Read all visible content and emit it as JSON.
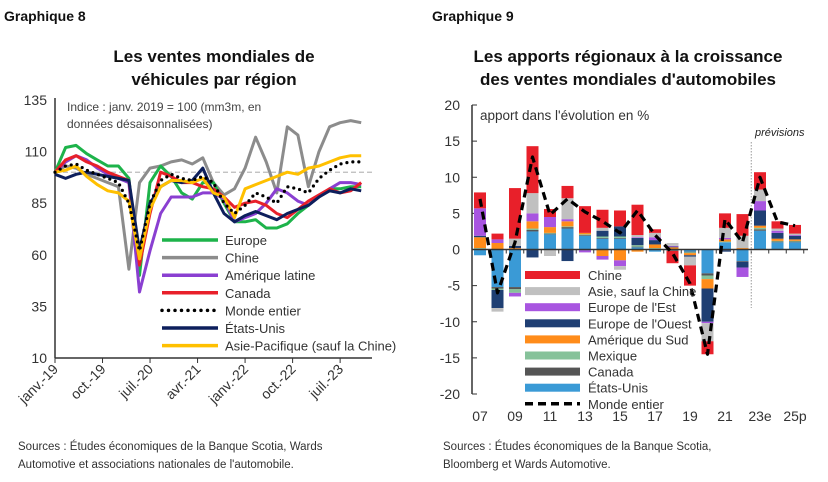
{
  "chart8": {
    "header": "Graphique 8",
    "title_lines": [
      "Les ventes mondiales de",
      "véhicules par région"
    ],
    "sources_lines": [
      "Sources : Études économiques de la Banque Scotia, Wards",
      "Automotive et associations nationales de l'automobile."
    ],
    "chart_data": {
      "type": "line",
      "title": "Les ventes mondiales de véhicules par région",
      "annotation_lines": [
        "Indice : janv. 2019 = 100 (mm3m, en",
        "données désaisonnalisées)"
      ],
      "ylim": [
        10,
        135
      ],
      "yticks": [
        10,
        35,
        60,
        85,
        110,
        135
      ],
      "xtick_labels": [
        "janv.-19",
        "oct.-19",
        "juil.-20",
        "avr.-21",
        "janv.-22",
        "oct.-22",
        "juil.-23"
      ],
      "xtick_dates": [
        "2019-01",
        "2019-10",
        "2020-07",
        "2021-04",
        "2022-01",
        "2022-10",
        "2023-07"
      ],
      "reference_line": 100,
      "grid": false,
      "legend_placement": "bottom-center",
      "x": [
        "2019-01",
        "2019-03",
        "2019-05",
        "2019-07",
        "2019-09",
        "2019-11",
        "2020-01",
        "2020-03",
        "2020-05",
        "2020-07",
        "2020-09",
        "2020-11",
        "2021-01",
        "2021-03",
        "2021-05",
        "2021-07",
        "2021-09",
        "2021-11",
        "2022-01",
        "2022-03",
        "2022-05",
        "2022-07",
        "2022-09",
        "2022-11",
        "2023-01",
        "2023-03",
        "2023-05",
        "2023-07",
        "2023-09",
        "2023-11"
      ],
      "series": [
        {
          "name": "Europe",
          "color": "#1db34a",
          "style": "solid",
          "values": [
            100,
            112,
            113,
            109,
            106,
            103,
            103,
            97,
            50,
            95,
            103,
            98,
            90,
            87,
            95,
            95,
            85,
            76,
            76,
            77,
            73,
            73,
            75,
            80,
            84,
            88,
            92,
            92,
            93,
            93
          ]
        },
        {
          "name": "Chine",
          "color": "#8c8c8c",
          "style": "solid",
          "values": [
            100,
            103,
            102,
            99,
            97,
            95,
            93,
            53,
            95,
            102,
            103,
            105,
            106,
            104,
            107,
            95,
            89,
            92,
            102,
            117,
            105,
            90,
            122,
            118,
            93,
            110,
            122,
            124,
            125,
            124
          ]
        },
        {
          "name": "Amérique latine",
          "color": "#8a3fd1",
          "style": "solid",
          "values": [
            100,
            105,
            108,
            106,
            102,
            99,
            97,
            95,
            42,
            62,
            80,
            88,
            88,
            88,
            90,
            90,
            87,
            76,
            78,
            80,
            85,
            92,
            90,
            86,
            84,
            88,
            92,
            95,
            95,
            94
          ]
        },
        {
          "name": "Canada",
          "color": "#e8202a",
          "style": "solid",
          "values": [
            100,
            106,
            108,
            105,
            103,
            100,
            98,
            96,
            55,
            80,
            100,
            98,
            95,
            95,
            93,
            92,
            88,
            83,
            85,
            86,
            84,
            80,
            78,
            82,
            86,
            89,
            92,
            90,
            91,
            95
          ]
        },
        {
          "name": "Monde entier",
          "color": "#000000",
          "style": "dotted",
          "values": [
            100,
            103,
            104,
            101,
            99,
            97,
            95,
            85,
            62,
            85,
            96,
            99,
            97,
            96,
            98,
            95,
            85,
            80,
            84,
            90,
            88,
            85,
            93,
            92,
            90,
            97,
            101,
            104,
            105,
            105
          ]
        },
        {
          "name": "États-Unis",
          "color": "#0d1f5c",
          "style": "solid",
          "values": [
            99,
            97,
            99,
            100,
            99,
            98,
            97,
            96,
            62,
            85,
            93,
            96,
            95,
            96,
            102,
            90,
            80,
            76,
            79,
            81,
            79,
            77,
            80,
            82,
            84,
            88,
            91,
            90,
            92,
            91
          ]
        },
        {
          "name": "Asie-Pacifique (sauf la Chine)",
          "color": "#ffc000",
          "style": "solid",
          "values": [
            100,
            101,
            103,
            98,
            94,
            91,
            90,
            86,
            58,
            82,
            93,
            96,
            96,
            95,
            97,
            90,
            88,
            78,
            92,
            94,
            96,
            98,
            100,
            99,
            102,
            103,
            105,
            107,
            108,
            108
          ]
        }
      ]
    }
  },
  "chart9": {
    "header": "Graphique 9",
    "title_lines": [
      "Les apports régionaux à la croissance",
      "des ventes mondiales d'automobiles"
    ],
    "sources_lines": [
      "Sources : Études économiques de la Banque Scotia,",
      "Bloomberg et Wards Automotive."
    ],
    "chart_data": {
      "type": "bar",
      "stacked": true,
      "title": "Les apports régionaux à la croissance des ventes mondiales d'automobiles",
      "ylabel": "apport dans l'évolution en %",
      "forecast_label": "prévisions",
      "forecast_start": "23e",
      "ylim": [
        -20,
        20
      ],
      "yticks": [
        -20,
        -15,
        -10,
        -5,
        0,
        5,
        10,
        15,
        20
      ],
      "grid": false,
      "legend_placement": "bottom-center",
      "categories": [
        "07",
        "08",
        "09",
        "10",
        "11",
        "12",
        "13",
        "14",
        "15",
        "16",
        "17",
        "18",
        "19",
        "20",
        "21",
        "22",
        "23e",
        "24p",
        "25p"
      ],
      "xtick_labels": [
        "07",
        "09",
        "11",
        "13",
        "15",
        "17",
        "19",
        "21",
        "23e",
        "25p"
      ],
      "series": [
        {
          "name": "États-Unis",
          "color": "#3a9ad6",
          "values": [
            -0.8,
            -5.2,
            -5.2,
            2.5,
            2.1,
            2.9,
            1.9,
            1.5,
            1.5,
            0.3,
            -0.3,
            -0.1,
            -0.3,
            -3.3,
            1.0,
            -1.6,
            2.6,
            1.0,
            1.0
          ]
        },
        {
          "name": "Canada",
          "color": "#555555",
          "values": [
            0.1,
            -0.2,
            -0.3,
            0.2,
            0.1,
            0.2,
            0.1,
            0.1,
            0.1,
            0.1,
            0.1,
            -0.1,
            -0.1,
            -0.3,
            -0.1,
            -0.1,
            0.2,
            0.1,
            0.1
          ]
        },
        {
          "name": "Mexique",
          "color": "#86c29a",
          "values": [
            0.1,
            -0.2,
            -0.5,
            0.2,
            0.1,
            0.1,
            0.1,
            0.2,
            0.2,
            0.2,
            0.1,
            0.0,
            -0.1,
            -0.5,
            0.1,
            0.0,
            0.2,
            0.1,
            0.1
          ]
        },
        {
          "name": "Amérique du Sud",
          "color": "#ff8c1a",
          "values": [
            1.5,
            0.9,
            0.2,
            1.0,
            0.8,
            0.7,
            0.2,
            -0.9,
            -1.5,
            -0.3,
            0.5,
            0.3,
            -0.3,
            -1.3,
            0.3,
            0.2,
            0.3,
            0.3,
            0.2
          ]
        },
        {
          "name": "Europe de l'Ouest",
          "color": "#1f3f73",
          "values": [
            0.2,
            -2.5,
            0.3,
            -1.1,
            0.0,
            -1.6,
            -0.1,
            0.8,
            1.4,
            1.0,
            0.6,
            0.1,
            -0.2,
            -4.6,
            -0.2,
            -0.8,
            2.1,
            0.8,
            0.5
          ]
        },
        {
          "name": "Europe de l'Est",
          "color": "#a855e0",
          "values": [
            3.8,
            0.5,
            -0.5,
            1.1,
            1.4,
            0.3,
            -0.3,
            -0.5,
            -0.8,
            0.1,
            0.4,
            0.1,
            0.0,
            -0.2,
            0.2,
            -1.3,
            1.3,
            0.3,
            0.1
          ]
        },
        {
          "name": "Asie, sauf la Chine",
          "color": "#c0c0c0",
          "values": [
            0.0,
            -0.5,
            1.0,
            2.8,
            -0.9,
            2.9,
            0.0,
            0.4,
            -0.5,
            0.3,
            0.6,
            0.4,
            -1.2,
            -2.5,
            1.4,
            1.7,
            1.6,
            0.3,
            0.2
          ]
        },
        {
          "name": "Chine",
          "color": "#e8202a",
          "values": [
            2.2,
            0.8,
            7.0,
            6.5,
            1.1,
            1.7,
            3.7,
            2.5,
            2.2,
            4.2,
            0.5,
            -1.7,
            -2.8,
            -1.8,
            2.0,
            3.0,
            2.4,
            1.0,
            1.2
          ]
        }
      ],
      "line": {
        "name": "Monde entier",
        "color": "#000000",
        "style": "dashed",
        "values": [
          7.0,
          -6.0,
          1.0,
          12.8,
          4.8,
          7.0,
          5.2,
          3.9,
          2.3,
          5.4,
          2.0,
          -0.5,
          -4.7,
          -14.5,
          4.2,
          1.0,
          10.0,
          3.8,
          3.3
        ]
      },
      "legend_order": [
        "Chine",
        "Asie, sauf la Chine",
        "Europe de l'Est",
        "Europe de l'Ouest",
        "Amérique du Sud",
        "Mexique",
        "Canada",
        "États-Unis",
        "Monde entier"
      ]
    }
  }
}
